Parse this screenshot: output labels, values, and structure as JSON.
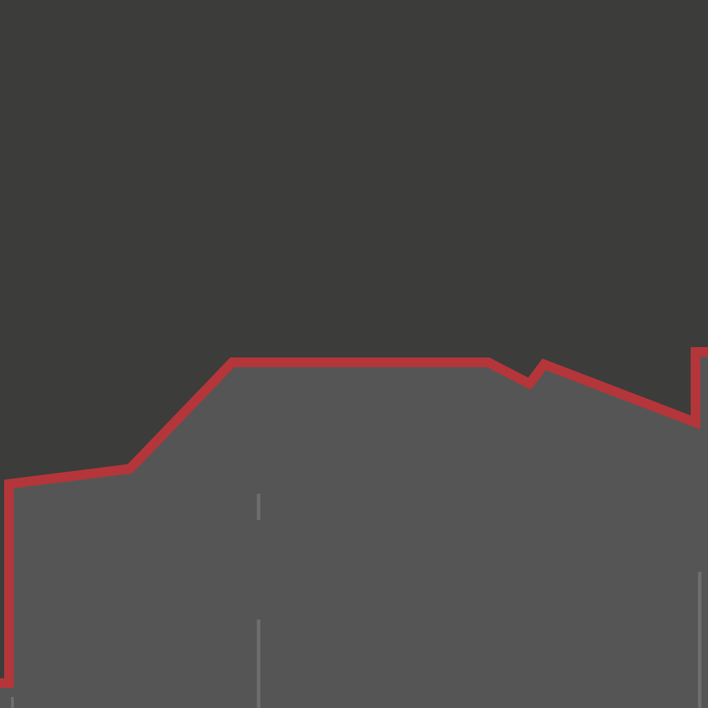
{
  "scene": {
    "description_free": true
  },
  "colors": {
    "sky": "#3c3c3b",
    "ground": "#555555",
    "outline": "#b4363a",
    "marker": "#6e6e6e"
  }
}
